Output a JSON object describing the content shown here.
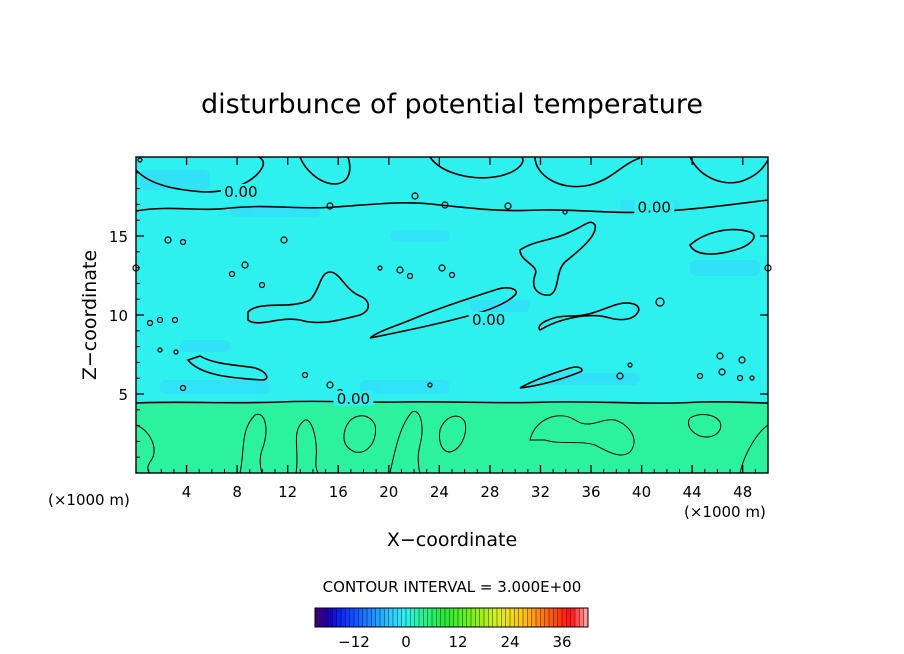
{
  "chart_data": {
    "type": "contour",
    "title": "disturbunce of potential temperature",
    "xlabel": "X−coordinate",
    "ylabel": "Z−coordinate",
    "x_unit": "(×1000 m)",
    "y_unit": "(×1000 m)",
    "xlim": [
      0,
      50
    ],
    "ylim": [
      0,
      20
    ],
    "xticks": [
      4,
      8,
      12,
      16,
      20,
      24,
      28,
      32,
      36,
      40,
      44,
      48
    ],
    "yticks": [
      5,
      10,
      15
    ],
    "contour_interval_text": "CONTOUR INTERVAL = 3.000E+00",
    "contour_labels": [
      {
        "text": "0.00",
        "x": 8.3,
        "z": 17.6
      },
      {
        "text": "0.00",
        "x": 41.0,
        "z": 16.6
      },
      {
        "text": "0.00",
        "x": 27.9,
        "z": 9.5
      },
      {
        "text": "0.00",
        "x": 17.2,
        "z": 4.5
      }
    ],
    "colorbar": {
      "ticks": [
        "−12",
        "0",
        "12",
        "24",
        "36"
      ],
      "tick_values": [
        -12,
        0,
        12,
        24,
        36
      ],
      "range": [
        -21,
        42
      ]
    },
    "fill_colors": {
      "upper_layer": "#2ef0ef",
      "lower_layer": "#2cf2a0",
      "blue_patches": "#35dcff"
    }
  }
}
